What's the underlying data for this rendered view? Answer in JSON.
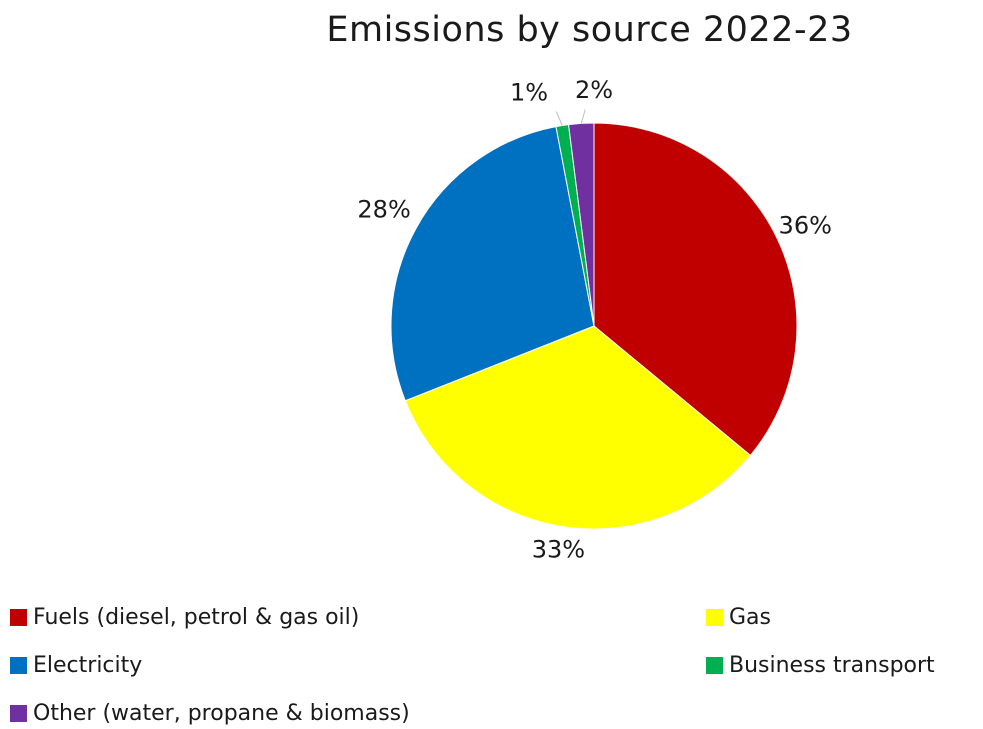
{
  "chart_data": {
    "type": "pie",
    "title": "Emissions by source 2022-23",
    "slices": [
      {
        "label": "Fuels (diesel, petrol & gas oil)",
        "value": 36,
        "display": "36%",
        "color": "#c00000"
      },
      {
        "label": "Gas",
        "value": 33,
        "display": "33%",
        "color": "#ffff00"
      },
      {
        "label": "Electricity",
        "value": 28,
        "display": "28%",
        "color": "#0070c0"
      },
      {
        "label": "Business transport",
        "value": 1,
        "display": "1%",
        "color": "#00b050"
      },
      {
        "label": "Other (water, propane & biomass)",
        "value": 2,
        "display": "2%",
        "color": "#7030a0"
      }
    ],
    "legend_position": "bottom"
  }
}
